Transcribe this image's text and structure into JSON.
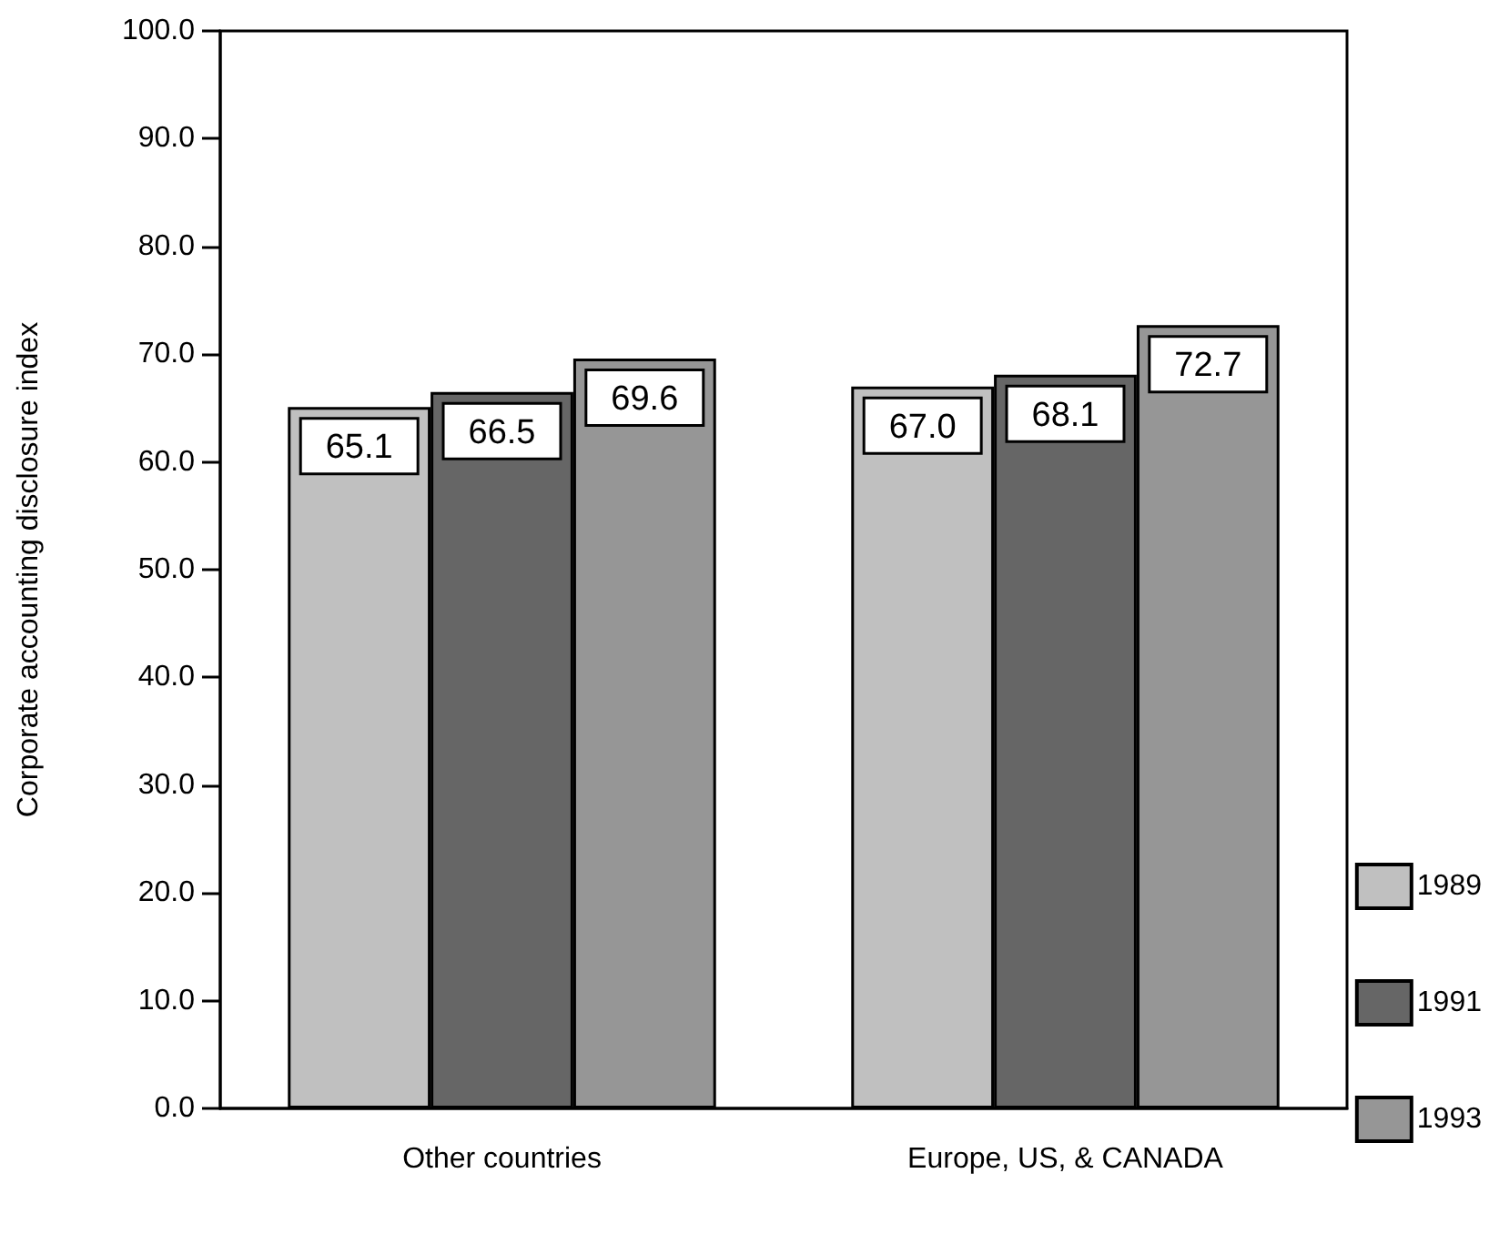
{
  "chart_data": {
    "type": "bar",
    "ylabel": "Corporate accounting disclosure index",
    "categories": [
      "Other countries",
      "Europe, US, & CANADA"
    ],
    "series": [
      {
        "name": "1989",
        "color": "#c0c0c0",
        "values": [
          65.1,
          67.0
        ],
        "value_labels": [
          "65.1",
          "67.0"
        ]
      },
      {
        "name": "1991",
        "color": "#666666",
        "values": [
          66.5,
          68.1
        ],
        "value_labels": [
          "66.5",
          "68.1"
        ]
      },
      {
        "name": "1993",
        "color": "#969696",
        "values": [
          69.6,
          72.7
        ],
        "value_labels": [
          "69.6",
          "72.7"
        ]
      }
    ],
    "ylim": [
      0,
      100
    ],
    "yticks": [
      {
        "value": 0,
        "label": "0.0"
      },
      {
        "value": 10,
        "label": "10.0"
      },
      {
        "value": 20,
        "label": "20.0"
      },
      {
        "value": 30,
        "label": "30.0"
      },
      {
        "value": 40,
        "label": "40.0"
      },
      {
        "value": 50,
        "label": "50.0"
      },
      {
        "value": 60,
        "label": "60.0"
      },
      {
        "value": 70,
        "label": "70.0"
      },
      {
        "value": 80,
        "label": "80.0"
      },
      {
        "value": 90,
        "label": "90.0"
      },
      {
        "value": 100,
        "label": "100.0"
      }
    ],
    "legend": "bottom right"
  }
}
